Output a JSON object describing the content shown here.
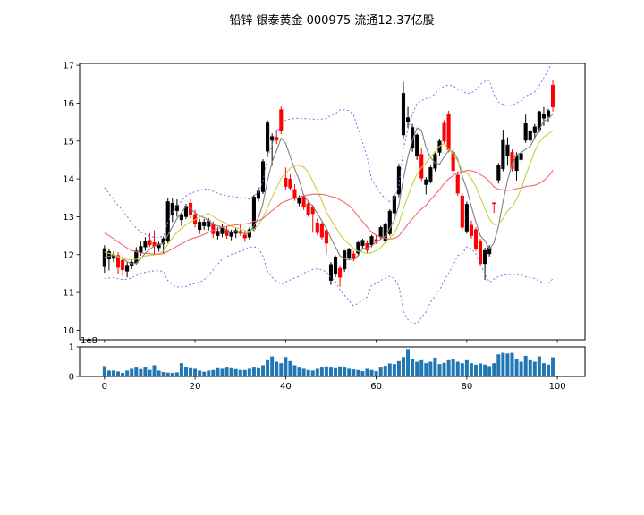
{
  "header": {
    "title": "铅锌 银泰黄金 000975 流通12.37亿股"
  },
  "chart_data": {
    "type": "candlestick+volume",
    "title": "铅锌 银泰黄金 000975 流通12.37亿股",
    "x_axis": {
      "tick_labels": [
        0,
        20,
        40,
        60,
        80,
        100
      ],
      "xlim": [
        -5.5,
        106.1
      ]
    },
    "price_axis": {
      "tick_labels": [
        10,
        11,
        12,
        13,
        14,
        15,
        16,
        17
      ],
      "ylim": [
        9.75,
        17.05
      ]
    },
    "volume_axis": {
      "tick_labels": [
        0,
        1
      ],
      "offset_label": "1e8",
      "ylim": [
        0,
        1
      ]
    },
    "colors": {
      "up_candle": "#000000",
      "down_candle": "#ff0000",
      "ma_fast": "#808080",
      "ma_mid": "#cdcd3c",
      "ma_slow": "#f26868",
      "bollinger_band": "#7474e8",
      "volume_bar": "#1f77b4",
      "axis": "#000000",
      "background": "#ffffff"
    },
    "overlays": {
      "ma_windows": [
        5,
        10,
        20
      ],
      "bollinger": {
        "window": 20,
        "k": 2
      },
      "prehistory_closes": [
        13.6,
        13.5,
        13.4,
        13.3,
        13.2,
        13.05,
        12.9,
        12.75,
        12.6,
        12.5,
        12.4,
        12.3,
        12.2,
        12.1,
        12.0,
        11.95,
        11.9,
        11.85,
        11.8
      ]
    },
    "ohlc": [
      [
        11.68,
        12.25,
        11.52,
        12.16
      ],
      [
        11.88,
        12.15,
        11.58,
        12.08
      ],
      [
        11.9,
        12.08,
        11.8,
        12.0
      ],
      [
        11.98,
        12.06,
        11.5,
        11.66
      ],
      [
        11.85,
        11.95,
        11.44,
        11.6
      ],
      [
        11.56,
        11.8,
        11.4,
        11.72
      ],
      [
        11.7,
        11.88,
        11.62,
        11.8
      ],
      [
        11.78,
        12.2,
        11.74,
        12.1
      ],
      [
        12.05,
        12.36,
        11.98,
        12.22
      ],
      [
        12.2,
        12.46,
        12.1,
        12.34
      ],
      [
        12.38,
        12.56,
        12.2,
        12.26
      ],
      [
        12.32,
        12.64,
        12.0,
        12.22
      ],
      [
        12.18,
        12.34,
        12.08,
        12.28
      ],
      [
        12.28,
        12.48,
        12.04,
        12.42
      ],
      [
        12.36,
        13.5,
        12.3,
        13.4
      ],
      [
        13.06,
        13.48,
        12.86,
        13.36
      ],
      [
        13.16,
        13.46,
        13.0,
        13.3
      ],
      [
        12.92,
        13.12,
        12.76,
        13.06
      ],
      [
        13.0,
        13.34,
        12.94,
        13.28
      ],
      [
        13.36,
        13.46,
        12.96,
        13.06
      ],
      [
        13.06,
        13.18,
        12.72,
        12.82
      ],
      [
        12.66,
        12.94,
        12.55,
        12.86
      ],
      [
        12.76,
        12.94,
        12.66,
        12.86
      ],
      [
        12.74,
        12.96,
        12.64,
        12.9
      ],
      [
        12.8,
        12.88,
        12.44,
        12.55
      ],
      [
        12.5,
        12.72,
        12.4,
        12.62
      ],
      [
        12.55,
        12.8,
        12.46,
        12.7
      ],
      [
        12.66,
        12.76,
        12.42,
        12.5
      ],
      [
        12.48,
        12.66,
        12.38,
        12.58
      ],
      [
        12.56,
        12.72,
        12.44,
        12.64
      ],
      [
        12.62,
        12.8,
        12.5,
        12.56
      ],
      [
        12.52,
        12.64,
        12.34,
        12.44
      ],
      [
        12.46,
        12.72,
        12.4,
        12.66
      ],
      [
        12.68,
        13.58,
        12.62,
        13.52
      ],
      [
        13.48,
        13.78,
        13.4,
        13.68
      ],
      [
        13.66,
        14.52,
        13.6,
        14.46
      ],
      [
        14.73,
        15.55,
        14.62,
        15.48
      ],
      [
        15.02,
        15.2,
        14.35,
        15.12
      ],
      [
        15.1,
        15.3,
        14.92,
        15.02
      ],
      [
        15.83,
        15.92,
        15.18,
        15.28
      ],
      [
        14.02,
        14.3,
        13.72,
        13.8
      ],
      [
        14.0,
        14.12,
        13.7,
        13.76
      ],
      [
        13.72,
        13.86,
        13.42,
        13.48
      ],
      [
        13.36,
        13.56,
        13.28,
        13.5
      ],
      [
        13.54,
        13.6,
        13.18,
        13.25
      ],
      [
        13.34,
        13.42,
        13.0,
        13.05
      ],
      [
        13.24,
        13.32,
        12.58,
        13.08
      ],
      [
        12.84,
        12.95,
        12.52,
        12.58
      ],
      [
        12.8,
        12.86,
        12.4,
        12.46
      ],
      [
        12.64,
        12.7,
        12.02,
        12.3
      ],
      [
        11.32,
        11.8,
        11.2,
        11.74
      ],
      [
        11.48,
        11.98,
        11.4,
        11.94
      ],
      [
        11.64,
        11.72,
        11.15,
        11.4
      ],
      [
        11.62,
        12.12,
        11.55,
        12.1
      ],
      [
        11.92,
        12.18,
        11.85,
        12.14
      ],
      [
        12.02,
        12.1,
        11.82,
        11.88
      ],
      [
        12.04,
        12.35,
        11.96,
        12.32
      ],
      [
        12.24,
        12.42,
        12.16,
        12.38
      ],
      [
        12.3,
        12.38,
        12.05,
        12.12
      ],
      [
        12.26,
        12.52,
        12.2,
        12.48
      ],
      [
        12.4,
        12.52,
        12.28,
        12.34
      ],
      [
        12.46,
        12.76,
        12.4,
        12.72
      ],
      [
        12.36,
        12.84,
        12.3,
        12.8
      ],
      [
        12.55,
        13.2,
        12.5,
        13.15
      ],
      [
        13.1,
        13.6,
        13.02,
        13.55
      ],
      [
        13.6,
        14.4,
        13.52,
        14.32
      ],
      [
        15.16,
        16.57,
        15.05,
        16.26
      ],
      [
        15.5,
        15.9,
        15.35,
        15.62
      ],
      [
        14.81,
        15.45,
        14.72,
        15.36
      ],
      [
        14.61,
        15.2,
        14.5,
        15.16
      ],
      [
        14.65,
        14.8,
        13.95,
        14.02
      ],
      [
        13.85,
        14.05,
        13.59,
        13.98
      ],
      [
        13.94,
        14.35,
        13.88,
        14.3
      ],
      [
        14.28,
        14.7,
        14.2,
        14.65
      ],
      [
        14.7,
        15.05,
        14.6,
        15.0
      ],
      [
        15.47,
        15.55,
        14.92,
        15.0
      ],
      [
        15.71,
        15.8,
        14.7,
        14.77
      ],
      [
        14.7,
        14.8,
        14.15,
        14.22
      ],
      [
        14.1,
        14.2,
        13.55,
        13.62
      ],
      [
        13.55,
        13.62,
        12.65,
        12.72
      ],
      [
        12.62,
        13.4,
        12.55,
        13.33
      ],
      [
        12.78,
        12.9,
        12.42,
        12.5
      ],
      [
        12.66,
        12.72,
        12.1,
        12.15
      ],
      [
        12.35,
        12.42,
        11.7,
        11.76
      ],
      [
        11.76,
        12.18,
        11.33,
        12.11
      ],
      [
        12.02,
        12.25,
        11.95,
        12.18
      ],
      [
        13.37,
        13.38,
        13.1,
        13.35
      ],
      [
        13.97,
        14.42,
        13.88,
        14.35
      ],
      [
        14.27,
        15.3,
        14.2,
        15.02
      ],
      [
        14.6,
        15.1,
        14.35,
        14.9
      ],
      [
        14.7,
        14.78,
        14.2,
        14.28
      ],
      [
        14.22,
        14.7,
        13.96,
        14.62
      ],
      [
        14.51,
        14.75,
        14.42,
        14.67
      ],
      [
        15.02,
        15.7,
        14.95,
        15.46
      ],
      [
        15.02,
        15.3,
        14.95,
        15.26
      ],
      [
        15.22,
        15.45,
        15.05,
        15.38
      ],
      [
        15.3,
        15.8,
        15.22,
        15.78
      ],
      [
        15.6,
        15.9,
        15.4,
        15.72
      ],
      [
        15.65,
        15.85,
        15.5,
        15.8
      ],
      [
        16.48,
        16.6,
        15.78,
        15.9
      ]
    ],
    "volume_1e8": [
      0.35,
      0.2,
      0.2,
      0.17,
      0.12,
      0.2,
      0.26,
      0.3,
      0.25,
      0.32,
      0.22,
      0.38,
      0.2,
      0.15,
      0.13,
      0.12,
      0.14,
      0.45,
      0.32,
      0.28,
      0.26,
      0.2,
      0.16,
      0.2,
      0.22,
      0.28,
      0.26,
      0.3,
      0.28,
      0.25,
      0.22,
      0.22,
      0.26,
      0.3,
      0.28,
      0.38,
      0.55,
      0.68,
      0.5,
      0.45,
      0.66,
      0.52,
      0.38,
      0.3,
      0.26,
      0.22,
      0.2,
      0.26,
      0.3,
      0.34,
      0.3,
      0.28,
      0.34,
      0.3,
      0.26,
      0.24,
      0.22,
      0.18,
      0.26,
      0.22,
      0.18,
      0.3,
      0.36,
      0.44,
      0.42,
      0.52,
      0.66,
      0.93,
      0.6,
      0.5,
      0.55,
      0.45,
      0.5,
      0.64,
      0.42,
      0.46,
      0.55,
      0.6,
      0.5,
      0.45,
      0.55,
      0.45,
      0.4,
      0.44,
      0.4,
      0.35,
      0.45,
      0.75,
      0.8,
      0.78,
      0.8,
      0.6,
      0.5,
      0.7,
      0.55,
      0.5,
      0.68,
      0.45,
      0.4,
      0.65
    ]
  }
}
